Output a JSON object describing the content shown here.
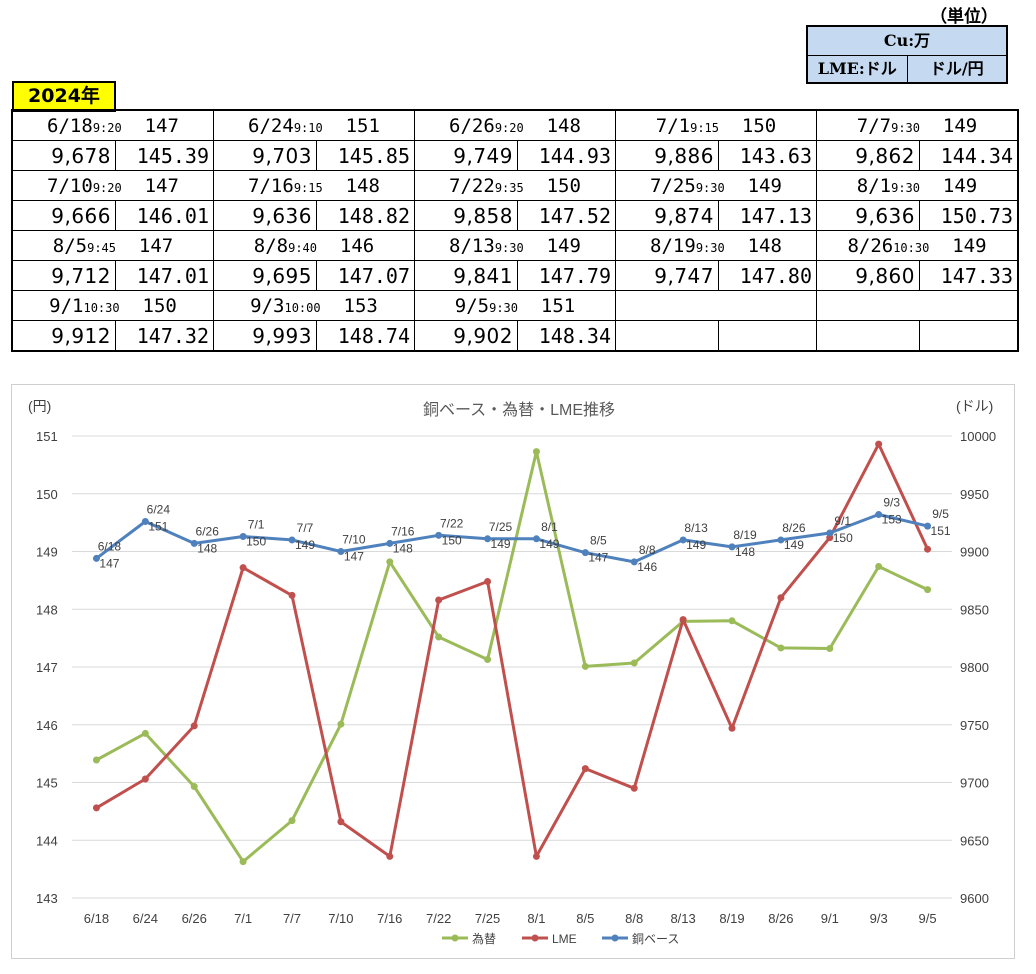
{
  "unit": {
    "label": "（単位）",
    "cu": "Cu:万",
    "lme": "LME:ドル",
    "yen": "ドル/円"
  },
  "year_badge": "2024年",
  "table_rows": [
    [
      {
        "date": "6/18",
        "time": "9:20",
        "base": "147",
        "lme": "9,678",
        "fx": "145.39"
      },
      {
        "date": "6/24",
        "time": "9:10",
        "base": "151",
        "lme": "9,703",
        "fx": "145.85"
      },
      {
        "date": "6/26",
        "time": "9:20",
        "base": "148",
        "lme": "9,749",
        "fx": "144.93"
      },
      {
        "date": "7/1",
        "time": "9:15",
        "base": "150",
        "lme": "9,886",
        "fx": "143.63"
      },
      {
        "date": "7/7",
        "time": "9:30",
        "base": "149",
        "lme": "9,862",
        "fx": "144.34"
      }
    ],
    [
      {
        "date": "7/10",
        "time": "9:20",
        "base": "147",
        "lme": "9,666",
        "fx": "146.01"
      },
      {
        "date": "7/16",
        "time": "9:15",
        "base": "148",
        "lme": "9,636",
        "fx": "148.82"
      },
      {
        "date": "7/22",
        "time": "9:35",
        "base": "150",
        "lme": "9,858",
        "fx": "147.52"
      },
      {
        "date": "7/25",
        "time": "9:30",
        "base": "149",
        "lme": "9,874",
        "fx": "147.13"
      },
      {
        "date": "8/1",
        "time": "9:30",
        "base": "149",
        "lme": "9,636",
        "fx": "150.73"
      }
    ],
    [
      {
        "date": "8/5",
        "time": "9:45",
        "base": "147",
        "lme": "9,712",
        "fx": "147.01"
      },
      {
        "date": "8/8",
        "time": "9:40",
        "base": "146",
        "lme": "9,695",
        "fx": "147.07"
      },
      {
        "date": "8/13",
        "time": "9:30",
        "base": "149",
        "lme": "9,841",
        "fx": "147.79"
      },
      {
        "date": "8/19",
        "time": "9:30",
        "base": "148",
        "lme": "9,747",
        "fx": "147.80"
      },
      {
        "date": "8/26",
        "time": "10:30",
        "base": "149",
        "lme": "9,860",
        "fx": "147.33"
      }
    ],
    [
      {
        "date": "9/1",
        "time": "10:30",
        "base": "150",
        "lme": "9,912",
        "fx": "147.32"
      },
      {
        "date": "9/3",
        "time": "10:00",
        "base": "153",
        "lme": "9,993",
        "fx": "148.74"
      },
      {
        "date": "9/5",
        "time": "9:30",
        "base": "151",
        "lme": "9,902",
        "fx": "148.34"
      },
      null,
      null
    ]
  ],
  "chart_data": {
    "type": "line",
    "title": "銅ベース・為替・LME推移",
    "left_axis_unit": "(円)",
    "right_axis_unit": "(ドル)",
    "categories": [
      "6/18",
      "6/24",
      "6/26",
      "7/1",
      "7/7",
      "7/10",
      "7/16",
      "7/22",
      "7/25",
      "8/1",
      "8/5",
      "8/8",
      "8/13",
      "8/19",
      "8/26",
      "9/1",
      "9/3",
      "9/5"
    ],
    "left_axis": {
      "min": 143,
      "max": 151,
      "ticks": [
        "143",
        "144",
        "145",
        "146",
        "147",
        "148",
        "149",
        "150",
        "151"
      ]
    },
    "right_axis": {
      "min": 9600,
      "max": 10000,
      "ticks": [
        "9600",
        "9650",
        "9700",
        "9750",
        "9800",
        "9850",
        "9900",
        "9950",
        "10000"
      ]
    },
    "grid": true,
    "legend_position": "bottom",
    "series": [
      {
        "name": "為替",
        "axis": "left",
        "color": "#9bbb59",
        "values": [
          145.39,
          145.85,
          144.93,
          143.63,
          144.34,
          146.01,
          148.82,
          147.52,
          147.13,
          150.73,
          147.01,
          147.07,
          147.79,
          147.8,
          147.33,
          147.32,
          148.74,
          148.34
        ]
      },
      {
        "name": "LME",
        "axis": "right",
        "color": "#c0504d",
        "values": [
          9678,
          9703,
          9749,
          9886,
          9862,
          9666,
          9636,
          9858,
          9874,
          9636,
          9712,
          9695,
          9841,
          9747,
          9860,
          9912,
          9993,
          9902
        ]
      },
      {
        "name": "銅ベース",
        "axis": "right",
        "color": "#4f81bd",
        "values": [
          9894,
          9926,
          9907,
          9913,
          9910,
          9900,
          9907,
          9914,
          9911,
          9911,
          9899,
          9891,
          9910,
          9904,
          9910,
          9916,
          9932,
          9922
        ],
        "data_labels": [
          "6/18\n147",
          "6/24\n151",
          "6/26\n148",
          "7/1\n150",
          "7/7\n149",
          "7/10\n147",
          "7/16\n148",
          "7/22\n150",
          "7/25\n149",
          "8/1\n149",
          "8/5\n147",
          "8/8\n146",
          "8/13\n149",
          "8/19\n148",
          "8/26\n149",
          "9/1\n150",
          "9/3\n153",
          "9/5\n151"
        ]
      }
    ]
  }
}
